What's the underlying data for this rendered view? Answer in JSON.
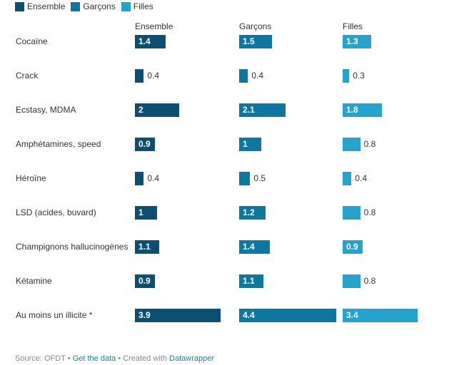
{
  "colors": {
    "Ensemble": "#0b4f73",
    "Garçons": "#0d77a0",
    "Filles": "#22a4cd"
  },
  "chart_data": {
    "type": "bar",
    "orientation": "horizontal",
    "layout": "small-multiples",
    "legend_position": "top-left",
    "categories": [
      "Cocaïne",
      "Crack",
      "Ecstasy, MDMA",
      "Amphétamines, speed",
      "Héroïne",
      "LSD (acides, buvard)",
      "Champignons hallucinogènes",
      "Kétamine",
      "Au moins un illicite *"
    ],
    "series": [
      {
        "name": "Ensemble",
        "values": [
          1.4,
          0.4,
          2,
          0.9,
          0.4,
          1,
          1.1,
          0.9,
          3.9
        ]
      },
      {
        "name": "Garçons",
        "values": [
          1.5,
          0.4,
          2.1,
          1,
          0.5,
          1.2,
          1.4,
          1.1,
          4.4
        ]
      },
      {
        "name": "Filles",
        "values": [
          1.3,
          0.3,
          1.8,
          0.8,
          0.4,
          0.8,
          0.9,
          0.8,
          3.4
        ]
      }
    ]
  },
  "footer": {
    "source": "Source: OFDT",
    "sep1": " • ",
    "get_data": "Get the data",
    "created": " • Created with ",
    "datawrapper": "Datawrapper"
  }
}
